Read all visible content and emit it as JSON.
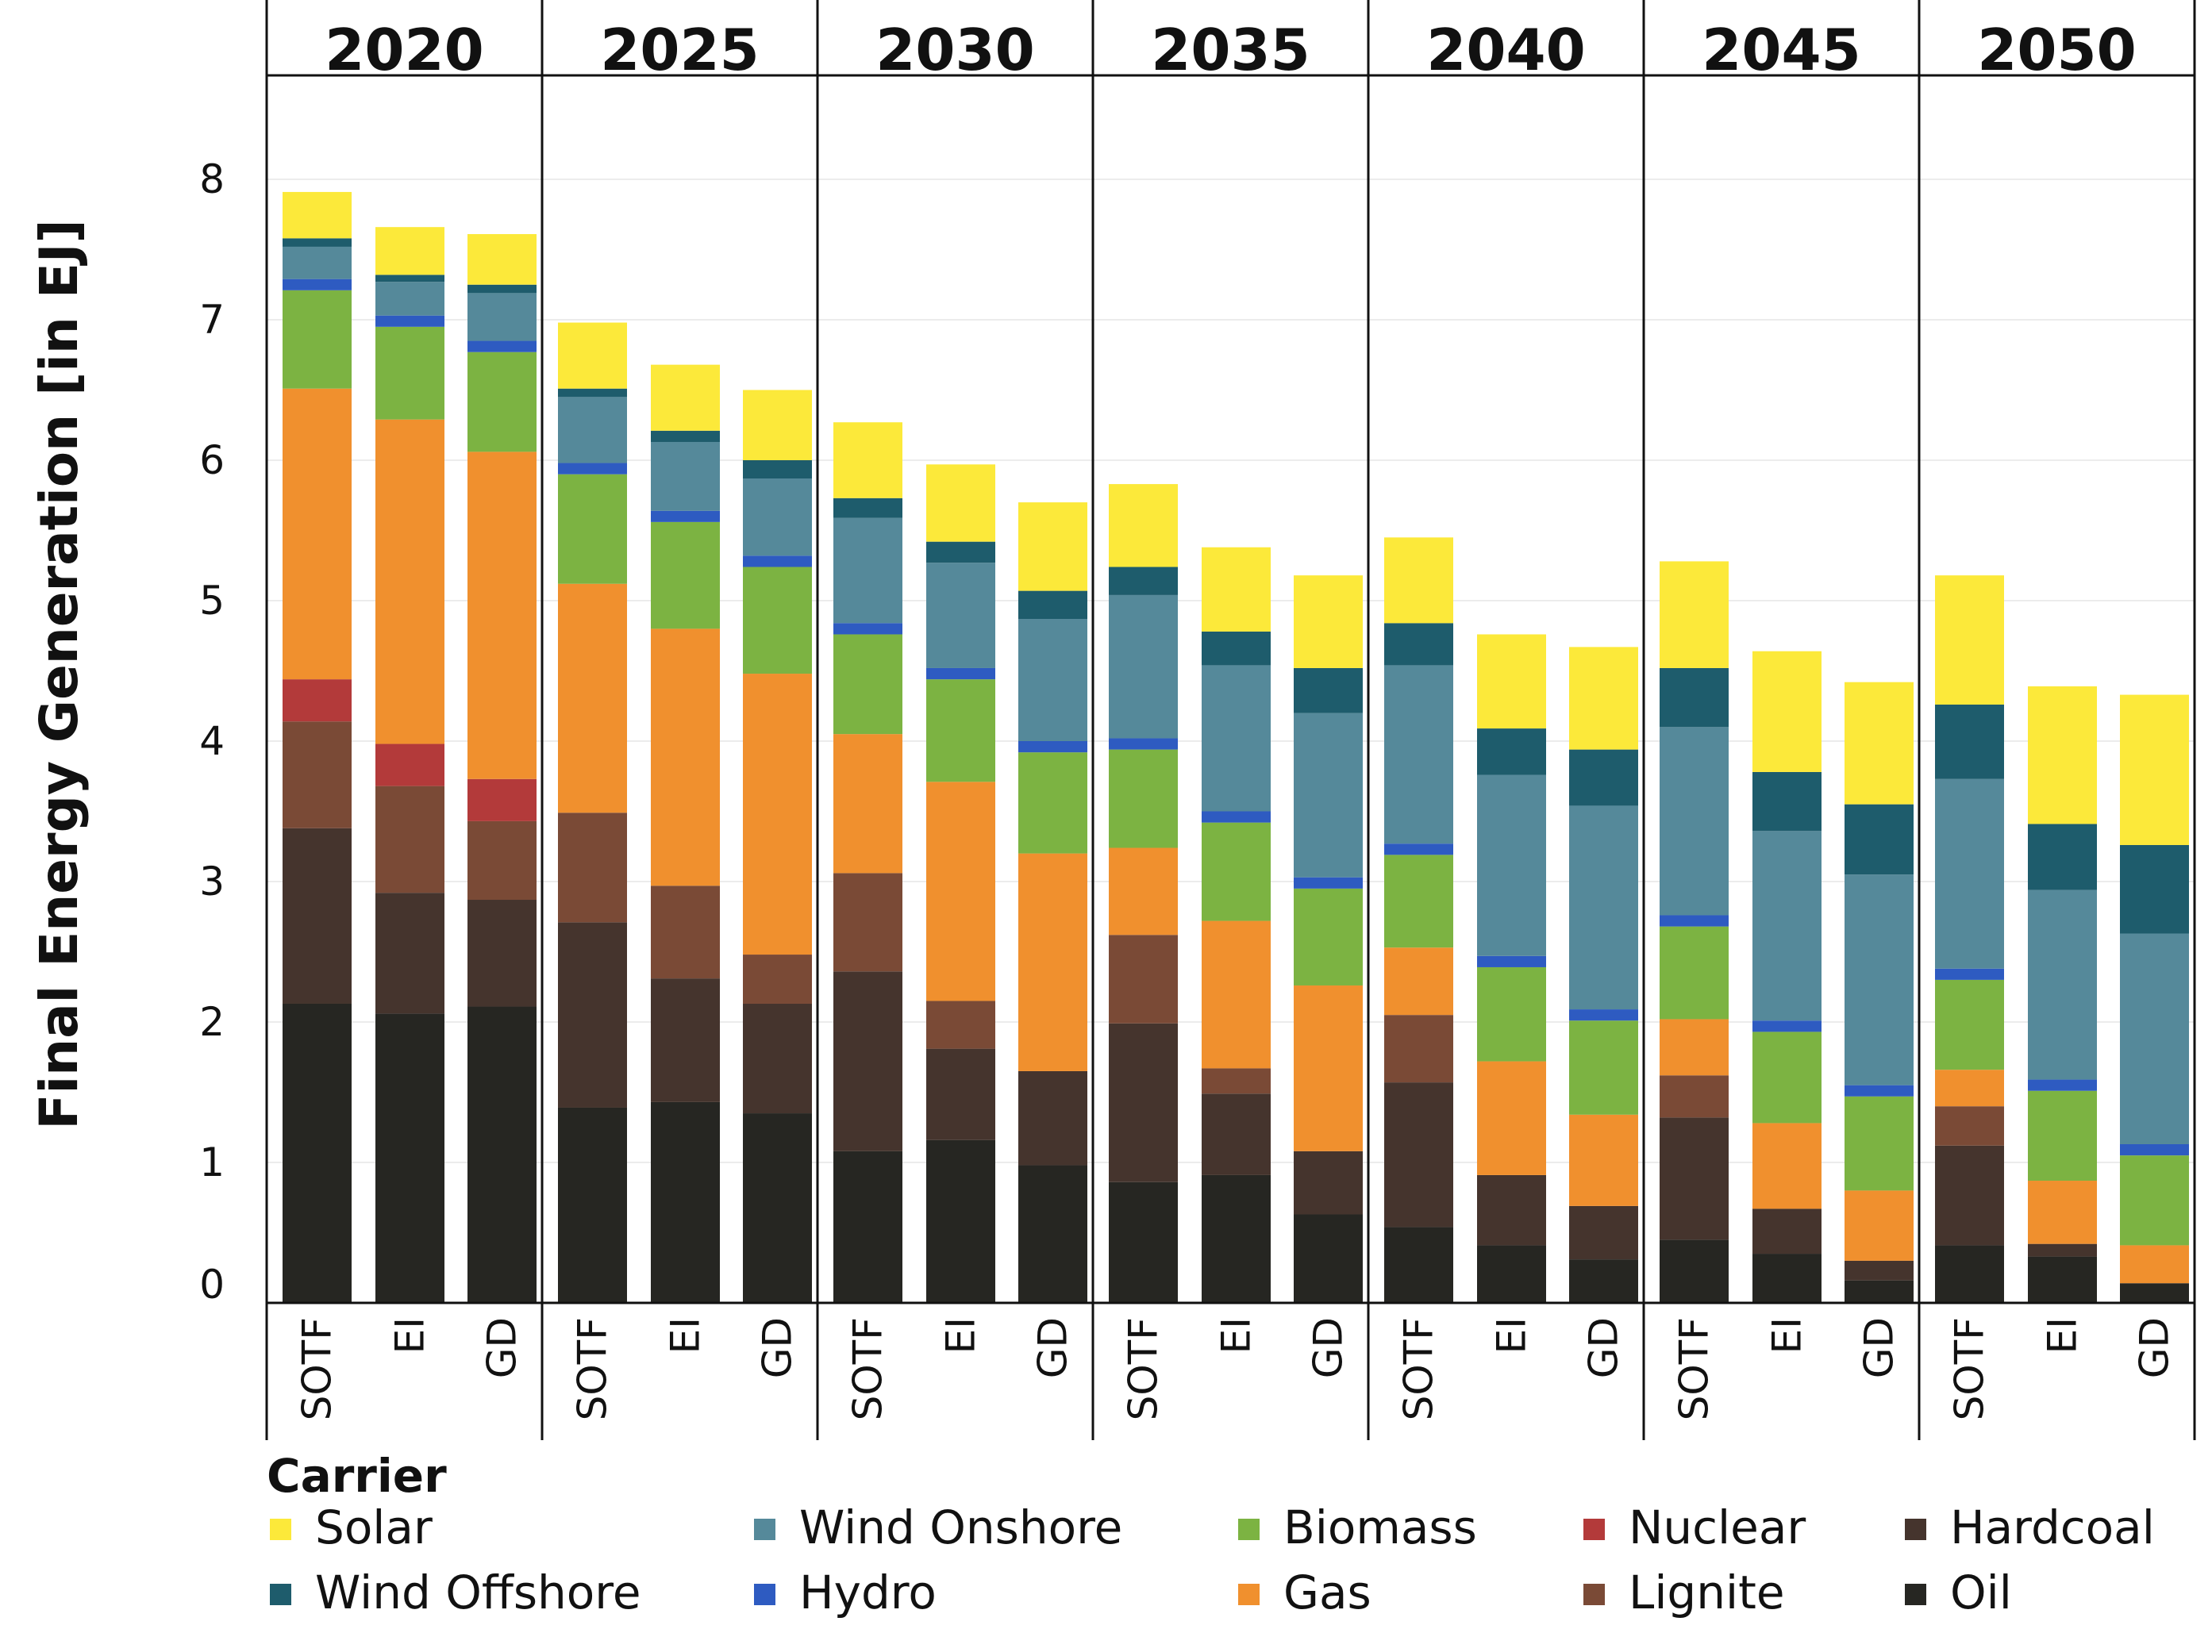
{
  "chart_data": {
    "type": "bar",
    "stacked": true,
    "title": "",
    "ylabel": "Final Energy Generation [in EJ]",
    "xlabel": "",
    "ylim": [
      0,
      8.7
    ],
    "yticks": [
      0,
      1,
      2,
      3,
      4,
      5,
      6,
      7,
      8
    ],
    "grid": true,
    "legend_title": "Carrier",
    "legend_position": "bottom",
    "years": [
      "2020",
      "2025",
      "2030",
      "2035",
      "2040",
      "2045",
      "2050"
    ],
    "scenarios": [
      "SOTF",
      "EI",
      "GD"
    ],
    "carriers": [
      "Oil",
      "Hardcoal",
      "Lignite",
      "Nuclear",
      "Gas",
      "Biomass",
      "Hydro",
      "Wind Onshore",
      "Wind Offshore",
      "Solar"
    ],
    "legend_order": [
      "Solar",
      "Wind Onshore",
      "Biomass",
      "Nuclear",
      "Hardcoal",
      "Wind Offshore",
      "Hydro",
      "Gas",
      "Lignite",
      "Oil"
    ],
    "colors": {
      "Solar": "#FCE93A",
      "Wind Offshore": "#1E5C6C",
      "Wind Onshore": "#55899A",
      "Hydro": "#2E5BC1",
      "Biomass": "#7CB342",
      "Gas": "#F0902E",
      "Nuclear": "#B33A3A",
      "Lignite": "#7A4A36",
      "Hardcoal": "#45342D",
      "Oil": "#262622"
    },
    "series": [
      {
        "name": "Oil",
        "values": [
          [
            2.13,
            2.06,
            2.11
          ],
          [
            1.39,
            1.43,
            1.35
          ],
          [
            1.08,
            1.16,
            0.98
          ],
          [
            0.86,
            0.91,
            0.63
          ],
          [
            0.54,
            0.41,
            0.31
          ],
          [
            0.45,
            0.35,
            0.16
          ],
          [
            0.41,
            0.33,
            0.14
          ]
        ]
      },
      {
        "name": "Hardcoal",
        "values": [
          [
            1.25,
            0.86,
            0.76
          ],
          [
            1.32,
            0.88,
            0.78
          ],
          [
            1.28,
            0.65,
            0.67
          ],
          [
            1.13,
            0.58,
            0.45
          ],
          [
            1.03,
            0.5,
            0.38
          ],
          [
            0.87,
            0.32,
            0.14
          ],
          [
            0.71,
            0.09,
            0.0
          ]
        ]
      },
      {
        "name": "Lignite",
        "values": [
          [
            0.76,
            0.76,
            0.56
          ],
          [
            0.78,
            0.66,
            0.35
          ],
          [
            0.7,
            0.34,
            0.0
          ],
          [
            0.63,
            0.18,
            0.0
          ],
          [
            0.48,
            0.0,
            0.0
          ],
          [
            0.3,
            0.0,
            0.0
          ],
          [
            0.28,
            0.0,
            0.0
          ]
        ]
      },
      {
        "name": "Nuclear",
        "values": [
          [
            0.3,
            0.3,
            0.3
          ],
          [
            0,
            0,
            0
          ],
          [
            0,
            0,
            0
          ],
          [
            0,
            0,
            0
          ],
          [
            0,
            0,
            0
          ],
          [
            0,
            0,
            0
          ],
          [
            0,
            0,
            0
          ]
        ]
      },
      {
        "name": "Gas",
        "values": [
          [
            2.07,
            2.31,
            2.33
          ],
          [
            1.63,
            1.83,
            2.0
          ],
          [
            0.99,
            1.56,
            1.55
          ],
          [
            0.62,
            1.05,
            1.18
          ],
          [
            0.48,
            0.81,
            0.65
          ],
          [
            0.4,
            0.61,
            0.5
          ],
          [
            0.26,
            0.45,
            0.27
          ]
        ]
      },
      {
        "name": "Biomass",
        "values": [
          [
            0.7,
            0.66,
            0.71
          ],
          [
            0.78,
            0.76,
            0.76
          ],
          [
            0.71,
            0.73,
            0.72
          ],
          [
            0.7,
            0.7,
            0.69
          ],
          [
            0.66,
            0.67,
            0.67
          ],
          [
            0.66,
            0.65,
            0.67
          ],
          [
            0.64,
            0.64,
            0.64
          ]
        ]
      },
      {
        "name": "Hydro",
        "values": [
          [
            0.08,
            0.08,
            0.08
          ],
          [
            0.08,
            0.08,
            0.08
          ],
          [
            0.08,
            0.08,
            0.08
          ],
          [
            0.08,
            0.08,
            0.08
          ],
          [
            0.08,
            0.08,
            0.08
          ],
          [
            0.08,
            0.08,
            0.08
          ],
          [
            0.08,
            0.08,
            0.08
          ]
        ]
      },
      {
        "name": "Wind Onshore",
        "values": [
          [
            0.23,
            0.24,
            0.34
          ],
          [
            0.47,
            0.49,
            0.55
          ],
          [
            0.75,
            0.75,
            0.87
          ],
          [
            1.02,
            1.04,
            1.17
          ],
          [
            1.27,
            1.29,
            1.45
          ],
          [
            1.34,
            1.35,
            1.5
          ],
          [
            1.35,
            1.35,
            1.5
          ]
        ]
      },
      {
        "name": "Wind Offshore",
        "values": [
          [
            0.06,
            0.05,
            0.06
          ],
          [
            0.06,
            0.08,
            0.13
          ],
          [
            0.14,
            0.15,
            0.2
          ],
          [
            0.2,
            0.24,
            0.32
          ],
          [
            0.3,
            0.33,
            0.4
          ],
          [
            0.42,
            0.42,
            0.5
          ],
          [
            0.53,
            0.47,
            0.63
          ]
        ]
      },
      {
        "name": "Solar",
        "values": [
          [
            0.33,
            0.34,
            0.36
          ],
          [
            0.47,
            0.47,
            0.5
          ],
          [
            0.54,
            0.55,
            0.63
          ],
          [
            0.59,
            0.6,
            0.66
          ],
          [
            0.61,
            0.67,
            0.73
          ],
          [
            0.76,
            0.86,
            0.87
          ],
          [
            0.92,
            0.98,
            1.07
          ]
        ]
      }
    ]
  }
}
